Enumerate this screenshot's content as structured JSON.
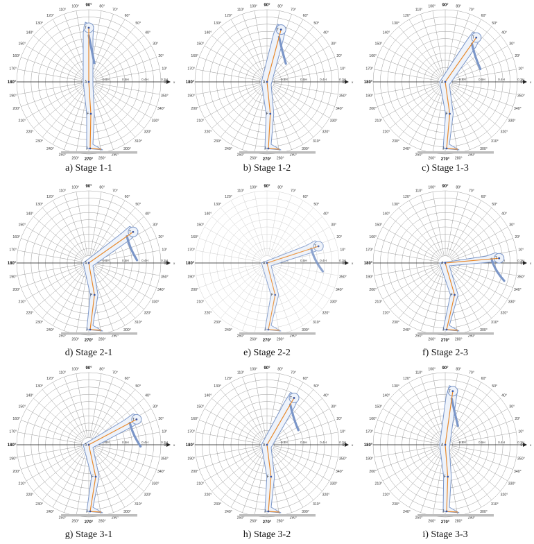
{
  "figure": {
    "panels": [
      {
        "caption": "a)  Stage 1-1",
        "pose": [
          0,
          0
        ]
      },
      {
        "caption": "b)  Stage 1-2",
        "pose": [
          15,
          5
        ]
      },
      {
        "caption": "c)  Stage 1-3",
        "pose": [
          35,
          10
        ]
      },
      {
        "caption": "d)  Stage 2-1",
        "pose": [
          55,
          15
        ]
      },
      {
        "caption": "e)  Stage 2-2",
        "pose": [
          72,
          25
        ],
        "faded": true
      },
      {
        "caption": "f)  Stage 2-3",
        "pose": [
          85,
          30
        ]
      },
      {
        "caption": "g)  Stage 3-1",
        "pose": [
          62,
          20
        ]
      },
      {
        "caption": "h)  Stage 3-2",
        "pose": [
          30,
          8
        ]
      },
      {
        "caption": "i)  Stage 3-3",
        "pose": [
          8,
          2
        ]
      }
    ],
    "degree_labels": [
      "0°",
      "10°",
      "20°",
      "30°",
      "40°",
      "50°",
      "60°",
      "70°",
      "80°",
      "90°",
      "100°",
      "110°",
      "120°",
      "130°",
      "140°",
      "150°",
      "160°",
      "170°",
      "180°",
      "190°",
      "200°",
      "210°",
      "220°",
      "230°",
      "240°",
      "250°",
      "260°",
      "270°",
      "280°",
      "290°",
      "300°",
      "310°",
      "320°",
      "330°",
      "340°",
      "350°"
    ],
    "radius_labels": [
      "0.6H",
      "0.5H",
      "0.4H",
      "0.3H"
    ],
    "axis_label": "x",
    "joint_labels": [
      "A",
      "F",
      "J",
      "T"
    ],
    "colors": {
      "grid": "#9c9c9c",
      "grid_light": "#cfcfcf",
      "body_outline": "#7b96c8",
      "body_fill": "#eef3fb",
      "skeleton": "#e8892b",
      "joint": "#3b55a0",
      "ground": "#bdbdbd"
    }
  }
}
